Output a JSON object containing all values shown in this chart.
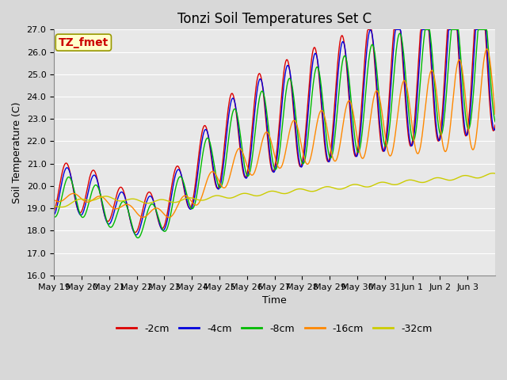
{
  "title": "Tonzi Soil Temperatures Set C",
  "xlabel": "Time",
  "ylabel": "Soil Temperature (C)",
  "ylim": [
    16.0,
    27.0
  ],
  "yticks": [
    16.0,
    17.0,
    18.0,
    19.0,
    20.0,
    21.0,
    22.0,
    23.0,
    24.0,
    25.0,
    26.0,
    27.0
  ],
  "annotation_text": "TZ_fmet",
  "annotation_bg": "#ffffcc",
  "annotation_border": "#999900",
  "annotation_color": "#cc0000",
  "series_colors": [
    "#dd0000",
    "#0000dd",
    "#00bb00",
    "#ff8800",
    "#cccc00"
  ],
  "series_labels": [
    "-2cm",
    "-4cm",
    "-8cm",
    "-16cm",
    "-32cm"
  ],
  "plot_bg": "#e8e8e8",
  "grid_color": "#ffffff",
  "title_fontsize": 12,
  "label_fontsize": 9,
  "tick_fontsize": 8,
  "x_tick_labels": [
    "May 19",
    "May 20",
    "May 21",
    "May 22",
    "May 23",
    "May 24",
    "May 25",
    "May 26",
    "May 27",
    "May 28",
    "May 29",
    "May 30",
    "May 31",
    "Jun 1",
    "Jun 2",
    "Jun 3"
  ]
}
